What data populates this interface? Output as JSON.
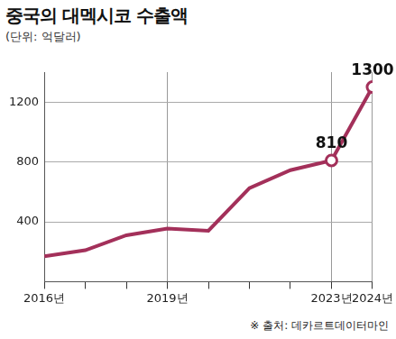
{
  "chart_data": {
    "type": "line",
    "title": "중국의 대멕시코 수출액",
    "subtitle": "(단위: 억달러)",
    "source": "※ 출처: 데카르트데이터마인",
    "categories": [
      "2016년",
      null,
      null,
      "2019년",
      null,
      null,
      null,
      "2023년",
      "2024년"
    ],
    "values": [
      170,
      210,
      310,
      355,
      340,
      625,
      745,
      810,
      1300
    ],
    "value_labels": [
      null,
      null,
      null,
      null,
      null,
      null,
      null,
      "810",
      "1300"
    ],
    "data_labels": true,
    "color": "#a3305a",
    "marker": "circle",
    "ylim": [
      0,
      1400
    ],
    "yticks": [
      400,
      800,
      1200
    ],
    "grid": true
  }
}
